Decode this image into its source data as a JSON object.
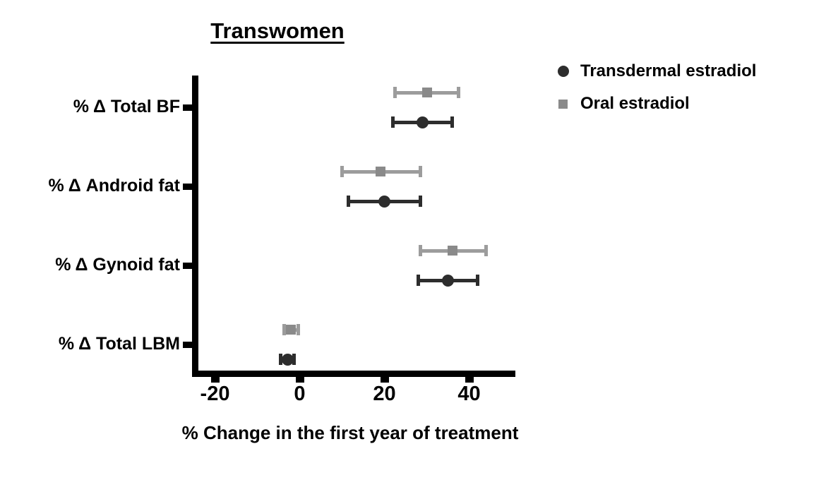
{
  "chart_data": {
    "type": "scatter",
    "subtype": "forest-dot-plot-with-error-bars",
    "title": "Transwomen",
    "xlabel": "% Change in the first year of treatment",
    "ylabel": "",
    "xlim": [
      -26,
      51
    ],
    "xticks": [
      -20,
      0,
      20,
      40
    ],
    "xtick_labels": [
      "-20",
      "0",
      "20",
      "40"
    ],
    "grid": false,
    "legend_position": "top-right-outside",
    "categories": [
      "% Δ Total BF",
      "% Δ Android fat",
      "% Δ Gynoid fat",
      "% Δ Total LBM"
    ],
    "series": [
      {
        "name": "Transdermal estradiol",
        "marker": "circle",
        "color": "#2d2d2d",
        "line_color": "#2d2d2d",
        "values": [
          29,
          20,
          35,
          -2.8
        ],
        "ci_low": [
          22,
          11.5,
          28,
          -4.5
        ],
        "ci_high": [
          36,
          28.5,
          42,
          -1.3
        ]
      },
      {
        "name": "Oral estradiol",
        "marker": "square",
        "color": "#8a8a8a",
        "line_color": "#9c9c9c",
        "values": [
          30,
          19,
          36,
          -2.1
        ],
        "ci_low": [
          22.5,
          10,
          28.5,
          -3.7
        ],
        "ci_high": [
          37.5,
          28.5,
          44,
          -0.4
        ]
      }
    ]
  }
}
